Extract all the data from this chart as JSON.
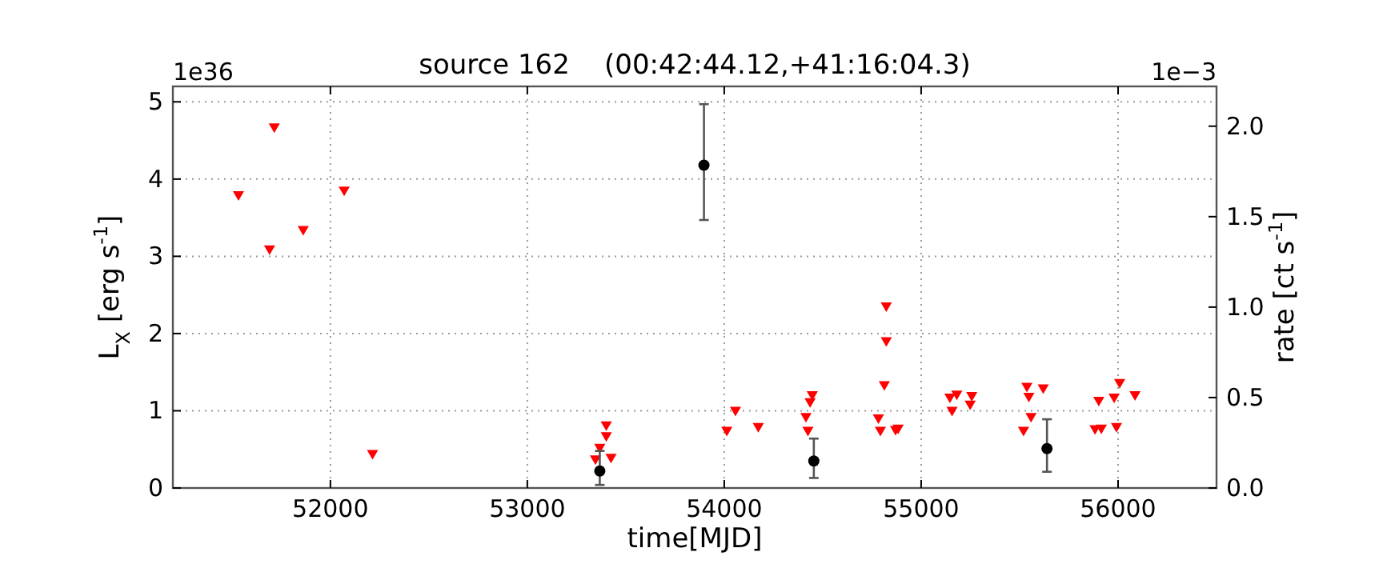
{
  "chart_data": {
    "type": "scatter",
    "title": "source 162    (00:42:44.12,+41:16:04.3)",
    "xlabel": "time[MJD]",
    "ylabel": "L$_{X}$ [erg s$^{-1}$]",
    "y2label": "rate [ct s$^{-1}$]",
    "annotations": [
      "1e36",
      "1e−3"
    ],
    "xlim": [
      51200,
      56500
    ],
    "xticks": [
      52000,
      53000,
      54000,
      55000,
      56000
    ],
    "ylim": [
      0,
      5.2
    ],
    "yticks": [
      0,
      1,
      2,
      3,
      4,
      5
    ],
    "y2lim": [
      0,
      2.22
    ],
    "y2ticks": [
      {
        "value": 0,
        "label": "0.0"
      },
      {
        "value": 0.5,
        "label": "0.5"
      },
      {
        "value": 1,
        "label": "1.0"
      },
      {
        "value": 1.5,
        "label": "1.5"
      },
      {
        "value": 2,
        "label": "2.0"
      }
    ],
    "grid": true,
    "series": [
      {
        "color": "#ff0000",
        "marker": "triangle",
        "x": [
          51533,
          51715,
          51691,
          51862,
          52070,
          52214,
          53401,
          53401,
          53368,
          53346,
          53425,
          54013,
          54057,
          54173,
          54415,
          54425,
          54436,
          54447,
          54783,
          54793,
          54813,
          54823,
          54823,
          54883,
          54870,
          55146,
          55157,
          55181,
          55257,
          55249,
          55520,
          55558,
          55547,
          55537,
          55620,
          55902,
          55883,
          55915,
          55980,
          55992,
          56008,
          56086
        ],
        "values": [
          3.78,
          4.66,
          3.08,
          3.33,
          3.84,
          0.43,
          0.8,
          0.66,
          0.51,
          0.36,
          0.38,
          0.73,
          0.99,
          0.78,
          0.91,
          0.73,
          1.1,
          1.19,
          0.89,
          0.73,
          1.32,
          1.89,
          2.34,
          0.76,
          0.74,
          1.16,
          0.99,
          1.2,
          1.18,
          1.07,
          0.73,
          0.91,
          1.17,
          1.3,
          1.28,
          1.12,
          0.75,
          0.76,
          1.16,
          0.78,
          1.35,
          1.19
        ]
      },
      {
        "color": "#000000",
        "marker": "circle",
        "x": [
          53368,
          53897,
          54455,
          55639
        ],
        "values": [
          0.22,
          4.18,
          0.35,
          0.51
        ],
        "errors": [
          [
            0.04,
            0.48
          ],
          [
            3.47,
            4.97
          ],
          [
            0.13,
            0.64
          ],
          [
            0.21,
            0.89
          ]
        ]
      }
    ]
  }
}
